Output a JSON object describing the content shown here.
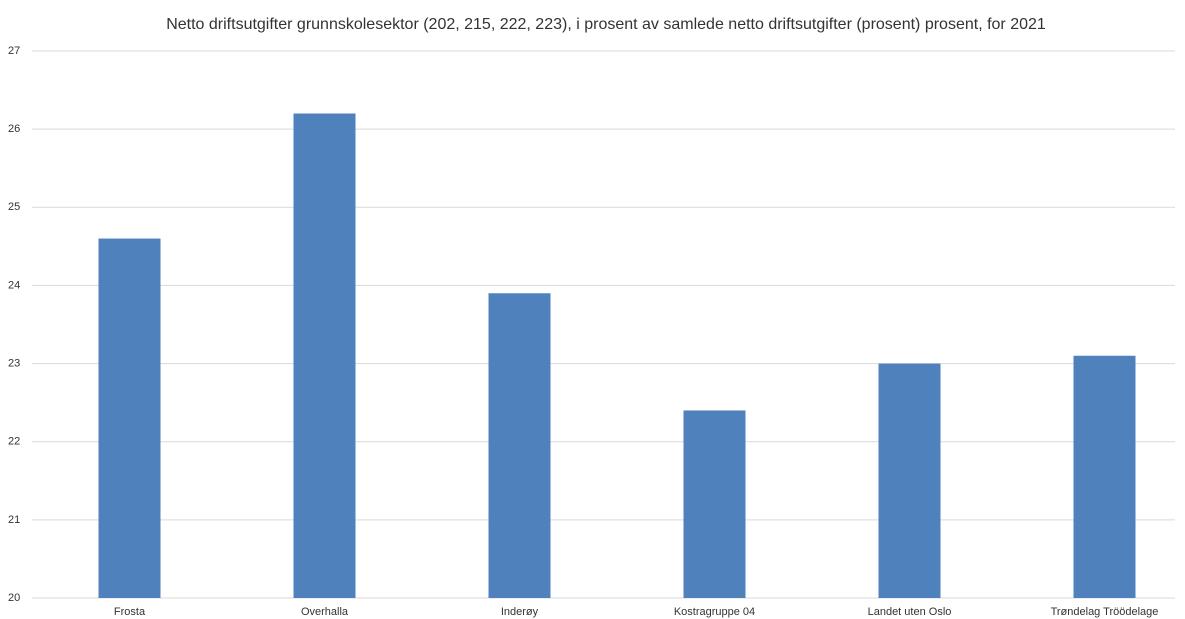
{
  "chart_data": {
    "type": "bar",
    "title": "Netto driftsutgifter grunnskolesektor (202, 215, 222, 223), i prosent av samlede netto driftsutgifter (prosent) prosent, for 2021",
    "categories": [
      "Frosta",
      "Overhalla",
      "Inderøy",
      "Kostragruppe 04",
      "Landet uten Oslo",
      "Trøndelag Tröödelage"
    ],
    "values": [
      24.6,
      26.2,
      23.9,
      22.4,
      23.0,
      23.1
    ],
    "color": "#4f81bd",
    "ylim": [
      20,
      27
    ],
    "yticks": [
      20,
      21,
      22,
      23,
      24,
      25,
      26,
      27
    ],
    "grid": true
  }
}
